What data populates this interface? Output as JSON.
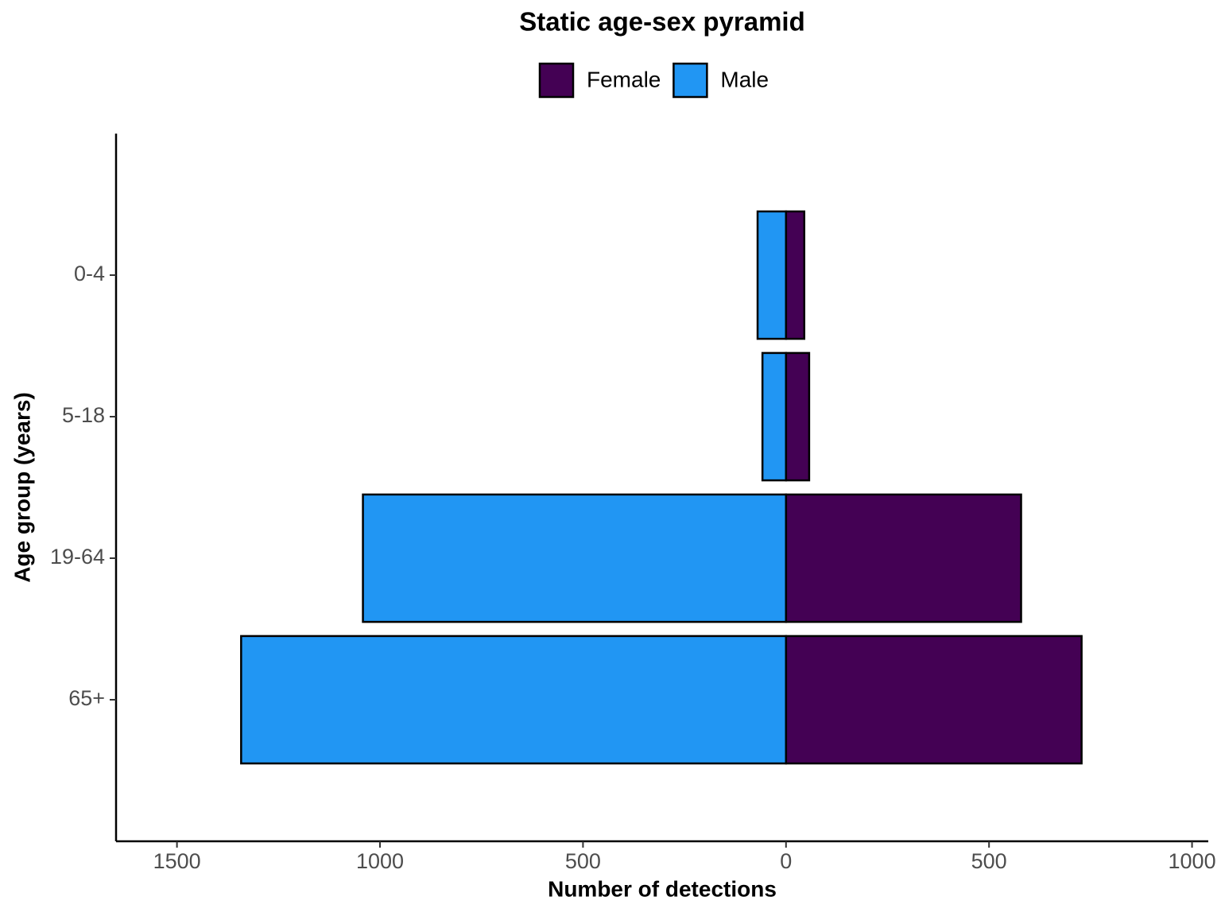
{
  "chart_data": {
    "type": "pyramid",
    "title": "Static age-sex pyramid",
    "x_label": "Number of detections",
    "y_label": "Age group (years)",
    "categories": [
      "0-4",
      "5-18",
      "19-64",
      "65+"
    ],
    "series": [
      {
        "name": "Female",
        "color": "#440154",
        "values": [
          45,
          57,
          579,
          728
        ]
      },
      {
        "name": "Male",
        "color": "#2196f3",
        "values": [
          -70,
          -58,
          -1042,
          -1342
        ]
      }
    ],
    "xlim": [
      -1650,
      1040
    ],
    "xticks": [
      {
        "value": -1500,
        "label": "1500"
      },
      {
        "value": -1000,
        "label": "1000"
      },
      {
        "value": -500,
        "label": "500"
      },
      0,
      500,
      {
        "value": 1000,
        "label": "1000"
      }
    ]
  }
}
